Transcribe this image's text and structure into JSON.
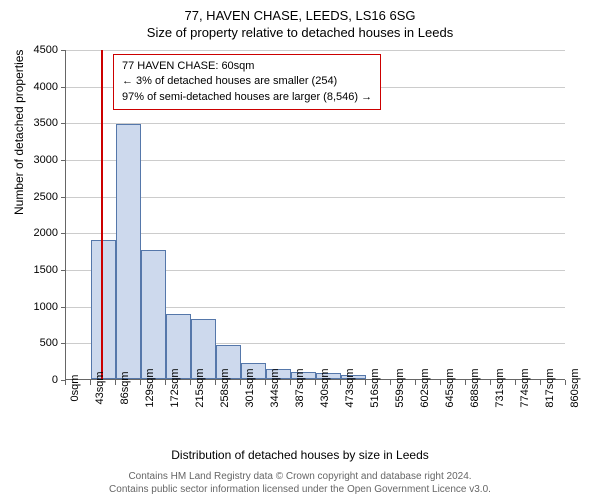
{
  "title_main": "77, HAVEN CHASE, LEEDS, LS16 6SG",
  "title_sub": "Size of property relative to detached houses in Leeds",
  "y_label": "Number of detached properties",
  "x_label": "Distribution of detached houses by size in Leeds",
  "chart": {
    "type": "histogram",
    "ylim": [
      0,
      4500
    ],
    "ytick_step": 500,
    "yticks": [
      0,
      500,
      1000,
      1500,
      2000,
      2500,
      3000,
      3500,
      4000,
      4500
    ],
    "xticks": [
      "0sqm",
      "43sqm",
      "86sqm",
      "129sqm",
      "172sqm",
      "215sqm",
      "258sqm",
      "301sqm",
      "344sqm",
      "387sqm",
      "430sqm",
      "473sqm",
      "516sqm",
      "559sqm",
      "602sqm",
      "645sqm",
      "688sqm",
      "731sqm",
      "774sqm",
      "817sqm",
      "860sqm"
    ],
    "bar_values": [
      0,
      1900,
      3480,
      1760,
      880,
      820,
      460,
      220,
      130,
      100,
      80,
      60,
      0,
      0,
      0,
      0,
      0,
      0,
      0,
      0
    ],
    "bar_fill": "#cdd9ed",
    "bar_stroke": "#5577aa",
    "grid_color": "#cccccc",
    "background_color": "#ffffff",
    "marker_position_sqm": 60,
    "marker_color": "#cc0000",
    "x_range_sqm": [
      0,
      860
    ]
  },
  "legend": {
    "line1": "77 HAVEN CHASE: 60sqm",
    "line2": "← 3% of detached houses are smaller (254)",
    "line3": "97% of semi-detached houses are larger (8,546) →",
    "border_color": "#cc0000"
  },
  "footer": {
    "line1": "Contains HM Land Registry data © Crown copyright and database right 2024.",
    "line2": "Contains public sector information licensed under the Open Government Licence v3.0."
  }
}
